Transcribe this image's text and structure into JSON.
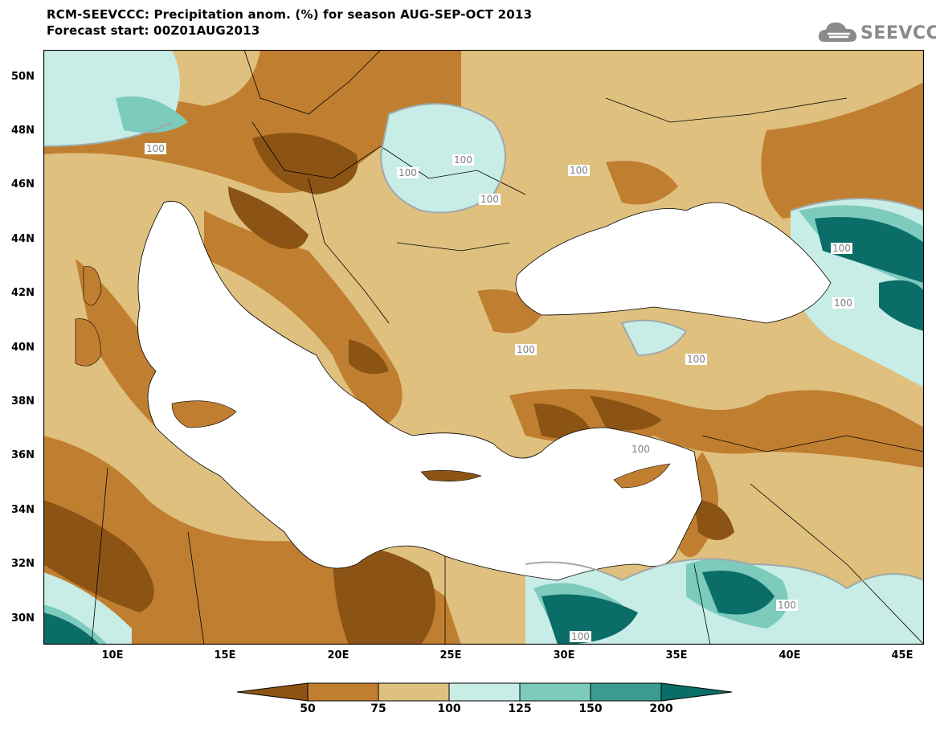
{
  "header": {
    "title_line1": "RCM-SEEVCCC: Precipitation anom. (%) for season AUG-SEP-OCT 2013",
    "title_line2": "Forecast start: 00Z01AUG2013",
    "logo_text": "SEEVCCC"
  },
  "map": {
    "lon_range": [
      7,
      46
    ],
    "lat_range": [
      29,
      51
    ],
    "lat_ticks": [
      "50N",
      "48N",
      "46N",
      "44N",
      "42N",
      "40N",
      "38N",
      "36N",
      "34N",
      "32N",
      "30N"
    ],
    "lon_ticks": [
      "10E",
      "15E",
      "20E",
      "25E",
      "30E",
      "35E",
      "40E",
      "45E"
    ],
    "contour_labels": [
      "100",
      "100",
      "100",
      "100",
      "100",
      "100",
      "100",
      "100",
      "100",
      "100",
      "100",
      "100"
    ]
  },
  "colorbar": {
    "labels": [
      "50",
      "75",
      "100",
      "125",
      "150",
      "200"
    ],
    "colors": [
      "#8c5414",
      "#c07f30",
      "#dfc07e",
      "#c8ece6",
      "#7ccbbd",
      "#3a9b90",
      "#0b6d67"
    ]
  }
}
